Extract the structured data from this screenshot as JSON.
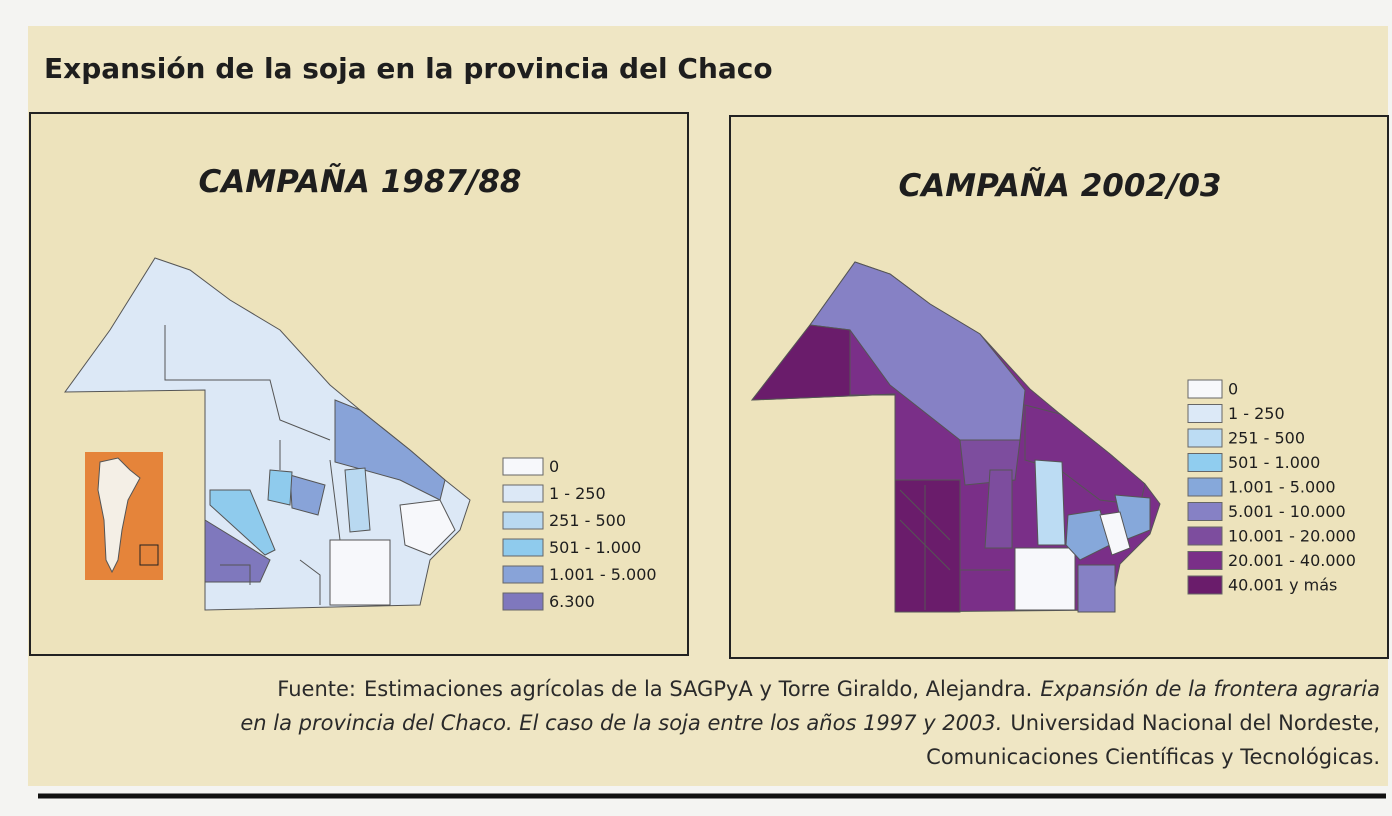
{
  "title": "Expansión de la soja en la provincia del Chaco",
  "maps": [
    {
      "title": "CAMPAÑA 1987/88",
      "legend": [
        {
          "label": "0",
          "color": "#f7f8fb"
        },
        {
          "label": "1 - 250",
          "color": "#dce8f6"
        },
        {
          "label": "251 - 500",
          "color": "#b9d9f1"
        },
        {
          "label": "501 - 1.000",
          "color": "#8fcbed"
        },
        {
          "label": "1.001 - 5.000",
          "color": "#88a3d8"
        },
        {
          "label": "6.300",
          "color": "#7f78bd"
        }
      ]
    },
    {
      "title": "CAMPAÑA 2002/03",
      "legend": [
        {
          "label": "0",
          "color": "#f7f8fb"
        },
        {
          "label": "1 - 250",
          "color": "#dce9f7"
        },
        {
          "label": "251 - 500",
          "color": "#bcdcf3"
        },
        {
          "label": "501 - 1.000",
          "color": "#90cdef"
        },
        {
          "label": "1.001 - 5.000",
          "color": "#86a8da"
        },
        {
          "label": "5.001 - 10.000",
          "color": "#8681c5"
        },
        {
          "label": "10.001 - 20.000",
          "color": "#7d4d9e"
        },
        {
          "label": "20.001 - 40.000",
          "color": "#7a2f88"
        },
        {
          "label": "40.001 y más",
          "color": "#6a1c6b"
        }
      ]
    }
  ],
  "source": [
    [
      {
        "text": "Fuente:",
        "italic": false
      },
      {
        "text": "Estimaciones agrícolas de la SAGPyA  y Torre Giraldo, Alejandra.",
        "italic": false
      },
      {
        "text": "Expansión de la frontera agraria",
        "italic": true
      }
    ],
    [
      {
        "text": "en la provincia del Chaco. El caso de la soja entre los años 1997 y 2003.",
        "italic": true
      },
      {
        "text": "Universidad Nacional del Nordeste,",
        "italic": false
      }
    ],
    [
      {
        "text": "Comunicaciones Científicas y Tecnológicas.",
        "italic": false
      }
    ]
  ]
}
